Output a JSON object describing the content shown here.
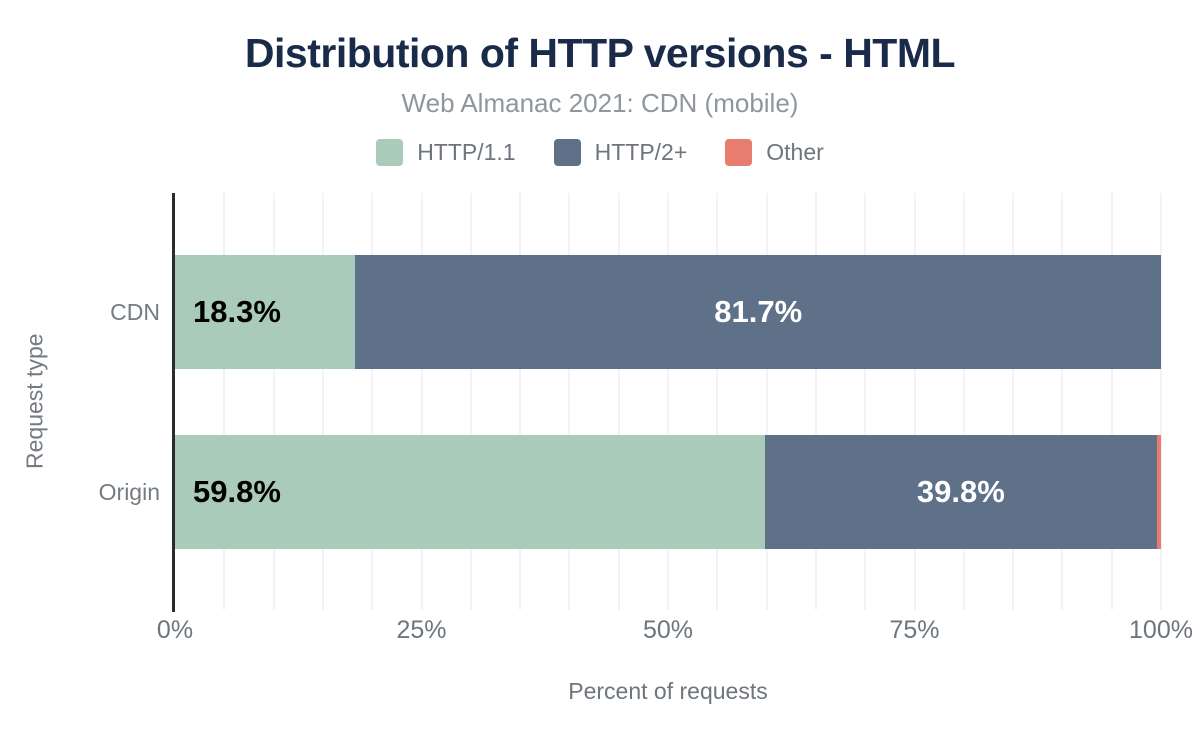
{
  "header": {
    "title": "Distribution of HTTP versions - HTML",
    "subtitle": "Web Almanac 2021: CDN (mobile)"
  },
  "legend": {
    "items": [
      {
        "label": "HTTP/1.1",
        "color": "#aacbba"
      },
      {
        "label": "HTTP/2+",
        "color": "#5f7189"
      },
      {
        "label": "Other",
        "color": "#e87d6f"
      }
    ]
  },
  "chart_data": {
    "type": "bar",
    "orientation": "horizontal",
    "stacked": true,
    "title": "Distribution of HTTP versions - HTML",
    "subtitle": "Web Almanac 2021: CDN (mobile)",
    "categories": [
      "CDN",
      "Origin"
    ],
    "series": [
      {
        "name": "HTTP/1.1",
        "color": "#aacbba",
        "values": [
          18.3,
          59.8
        ]
      },
      {
        "name": "HTTP/2+",
        "color": "#5f7189",
        "values": [
          81.7,
          39.8
        ]
      },
      {
        "name": "Other",
        "color": "#e87d6f",
        "values": [
          0.0,
          0.4
        ]
      }
    ],
    "bar_labels": [
      [
        "18.3%",
        "81.7%",
        ""
      ],
      [
        "59.8%",
        "39.8%",
        ""
      ]
    ],
    "xlabel": "Percent of requests",
    "ylabel": "Request type",
    "x_ticks": [
      "0%",
      "25%",
      "50%",
      "75%",
      "100%"
    ],
    "xlim": [
      0,
      100
    ],
    "grid": {
      "vertical_line_every_percent": 5,
      "color": "#f2f3f4"
    },
    "legend_position": "top",
    "colors": {
      "title": "#1a2b49",
      "subtitle": "#8f969c",
      "axis_text": "#6e757c",
      "axis_line": "#2b2b2b",
      "label_on_light": "#000000",
      "label_on_dark": "#ffffff"
    }
  }
}
